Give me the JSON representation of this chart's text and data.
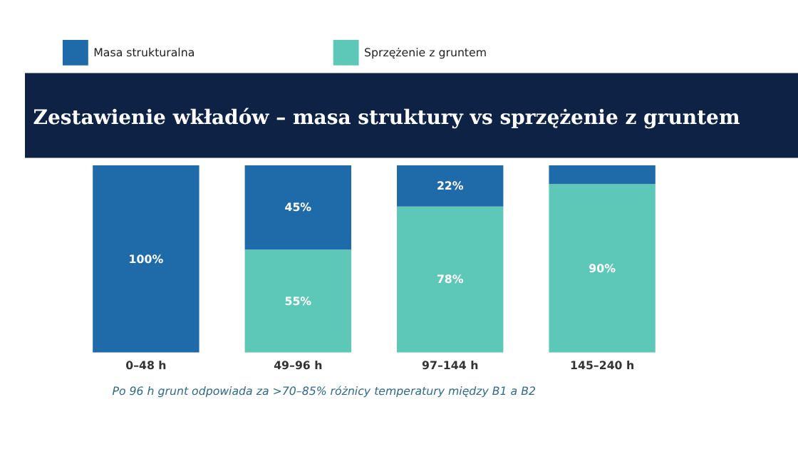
{
  "chart_data": {
    "type": "bar",
    "title": "Zestawienie wkładów – masa struktury vs sprzężenie z gruntem",
    "categories": [
      "0–48 h",
      "49–96 h",
      "97–144 h",
      "145–240 h"
    ],
    "stacked": true,
    "legend": "top left",
    "grid": false,
    "tick_labels": "x",
    "series": [
      {
        "name": "Sprzężenie z gruntem",
        "color": "#5ec8b8",
        "values": [
          0,
          55,
          78,
          90
        ],
        "value_labels": [
          null,
          "55%",
          "78%",
          "90%"
        ]
      },
      {
        "name": "Masa strukturalna",
        "color": "#1f6aa8",
        "values": [
          100,
          45,
          22,
          10
        ],
        "value_labels": [
          "100%",
          "45%",
          "22%",
          null
        ]
      }
    ],
    "annotations": [
      "Po 96 h grunt odpowiada za >70–85% różnicy temperatury między B1 a B2"
    ]
  }
}
